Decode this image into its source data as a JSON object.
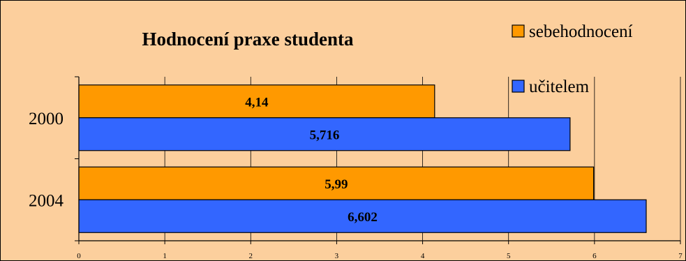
{
  "colors": {
    "background": "#FCCF9D",
    "series_sebehodnoceni": "#FF9900",
    "series_ucitelem": "#3366FF",
    "gridline": "#000000"
  },
  "chart_data": {
    "type": "bar",
    "orientation": "horizontal",
    "title": "Hodnocení praxe studenta",
    "categories": [
      "2000",
      "2004"
    ],
    "series": [
      {
        "name": "sebehodnocení",
        "values": [
          4.14,
          5.99
        ],
        "labels": [
          "4,14",
          "5,99"
        ]
      },
      {
        "name": "učitelem",
        "values": [
          5.716,
          6.602
        ],
        "labels": [
          "5,716",
          "6,602"
        ]
      }
    ],
    "xlim": [
      0,
      7
    ],
    "xticks": [
      "0",
      "1",
      "2",
      "3",
      "4",
      "5",
      "6",
      "7"
    ],
    "grid": true,
    "legend": "top-right"
  }
}
